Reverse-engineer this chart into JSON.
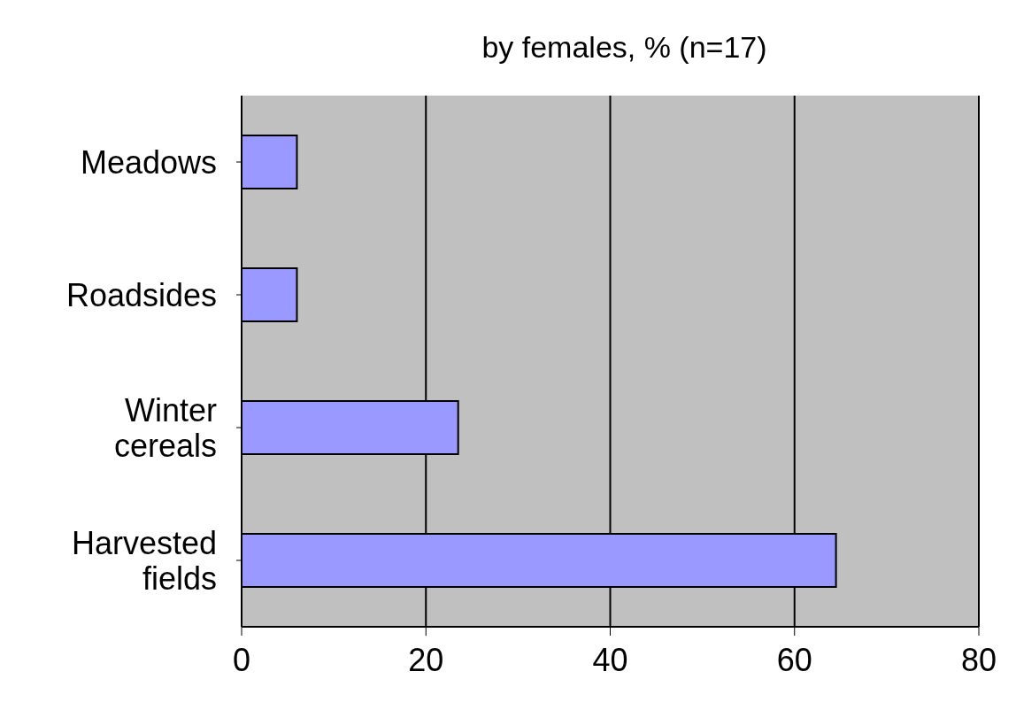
{
  "chart_data": {
    "type": "bar",
    "orientation": "horizontal",
    "title": "by females, % (n=17)",
    "categories": [
      "Meadows",
      "Roadsides",
      "Winter cereals",
      "Harvested fields"
    ],
    "values": [
      6,
      6,
      23.5,
      64.5
    ],
    "color": "#9999ff",
    "xlim": [
      0,
      80
    ],
    "xticks": [
      0,
      20,
      40,
      60,
      80
    ],
    "grid": "x"
  }
}
